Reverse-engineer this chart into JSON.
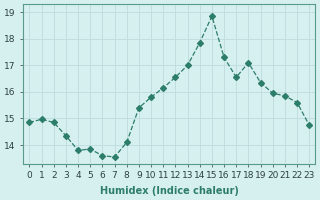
{
  "xlabel": "Humidex (Indice chaleur)",
  "x_values": [
    0,
    1,
    2,
    3,
    4,
    5,
    6,
    7,
    8,
    9,
    10,
    11,
    12,
    13,
    14,
    15,
    16,
    17,
    18,
    19,
    20,
    21,
    22,
    23
  ],
  "y_values": [
    14.85,
    14.97,
    14.85,
    14.35,
    13.8,
    13.85,
    13.6,
    13.55,
    14.1,
    15.4,
    15.8,
    16.15,
    16.55,
    17.0,
    17.85,
    18.85,
    17.3,
    16.55,
    17.1,
    16.35,
    15.95,
    15.85,
    15.6,
    14.75
  ],
  "ylim": [
    13.3,
    19.3
  ],
  "yticks": [
    14,
    15,
    16,
    17,
    18,
    19
  ],
  "line_color": "#2d7d6b",
  "marker": "D",
  "marker_size": 3,
  "line_width": 0.9,
  "bg_color": "#d6f0ef",
  "grid_color": "#c0dede",
  "axis_fontsize": 7,
  "tick_fontsize": 6.5
}
